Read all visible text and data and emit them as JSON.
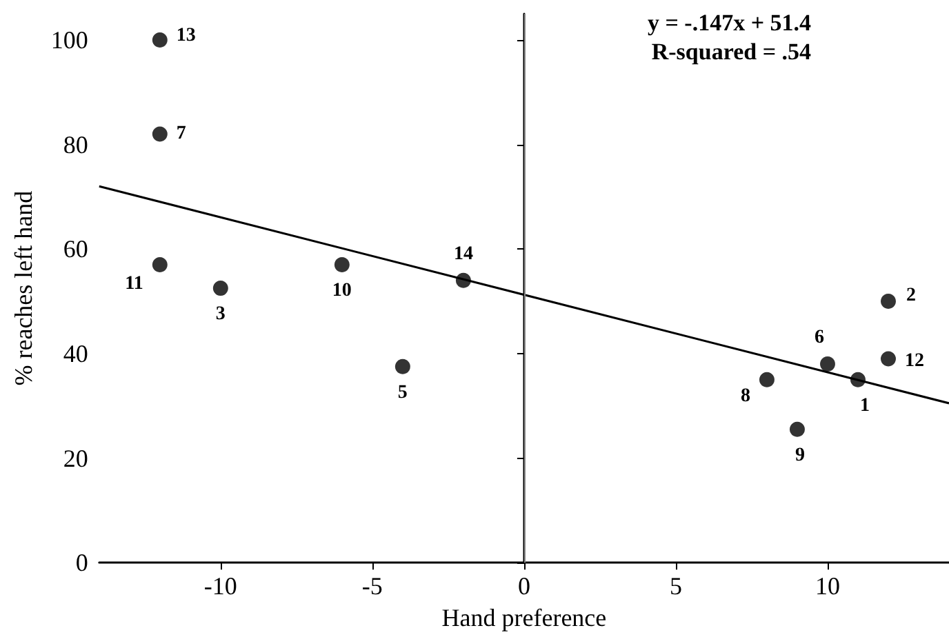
{
  "chart_data": {
    "type": "scatter",
    "xlabel": "Hand preference",
    "ylabel": "% reaches left hand",
    "annotations": [
      "y = -.147x + 51.4",
      "R-squared = .54",
      {
        "text": "1",
        "x": 11,
        "y": 35
      },
      {
        "text": "2",
        "x": 12,
        "y": 50
      },
      {
        "text": "3",
        "x": -10,
        "y": 52.5
      },
      {
        "text": "5",
        "x": -4,
        "y": 37.5
      },
      {
        "text": "6",
        "x": 10,
        "y": 38
      },
      {
        "text": "7",
        "x": -12,
        "y": 82
      },
      {
        "text": "8",
        "x": 8,
        "y": 35
      },
      {
        "text": "9",
        "x": 9,
        "y": 25.5
      },
      {
        "text": "10",
        "x": -6,
        "y": 57
      },
      {
        "text": "11",
        "x": -12,
        "y": 57
      },
      {
        "text": "12",
        "x": 12,
        "y": 39
      },
      {
        "text": "13",
        "x": -12,
        "y": 100
      },
      {
        "text": "14",
        "x": -2,
        "y": 54
      }
    ],
    "xlim": [
      -14,
      14
    ],
    "xticks": [
      -10,
      -5,
      0,
      5,
      10
    ],
    "ylim": [
      0,
      105
    ],
    "yticks": [
      0,
      20,
      40,
      60,
      80,
      100
    ],
    "grid": false,
    "marker": "circle",
    "ref_lines": [
      {
        "axis": "x",
        "value": 0,
        "color": "#888888",
        "line_style": "solid"
      }
    ],
    "series": [
      {
        "color": "#000000",
        "x": [
          11,
          12,
          -10,
          -4,
          10,
          -12,
          8,
          9,
          -6,
          -12,
          12,
          -12,
          -2
        ],
        "values": [
          35,
          50,
          52.5,
          37.5,
          38,
          82,
          35,
          25.5,
          57,
          57,
          39,
          100,
          54
        ]
      },
      {
        "type": "line",
        "color": "#000000",
        "x": [
          -14,
          14
        ],
        "values": [
          72,
          30.5
        ],
        "marker": "none",
        "line_style": "solid"
      }
    ]
  }
}
